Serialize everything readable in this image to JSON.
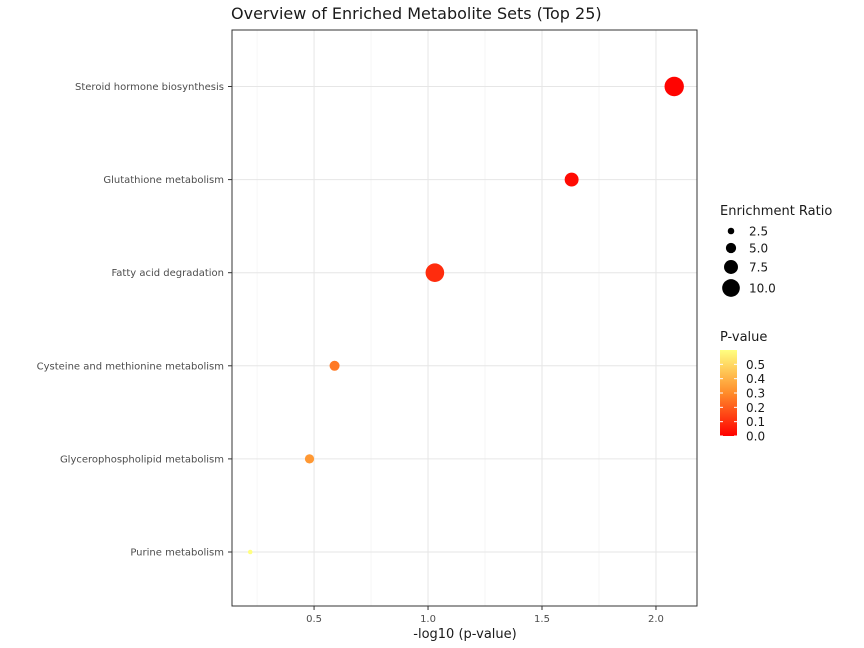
{
  "chart_data": {
    "type": "scatter",
    "title": "Overview of Enriched Metabolite Sets (Top 25)",
    "xlabel": "-log10 (p-value)",
    "ylabel": "",
    "xlim": [
      0.14,
      2.18
    ],
    "xticks": [
      0.5,
      1.0,
      1.5,
      2.0
    ],
    "xtick_labels": [
      "0.5",
      "1.0",
      "1.5",
      "2.0"
    ],
    "grid": true,
    "categories": [
      "Steroid hormone biosynthesis",
      "Glutathione metabolism",
      "Fatty acid degradation",
      "Cysteine and methionine metabolism",
      "Glycerophospholipid metabolism",
      "Purine metabolism"
    ],
    "points": [
      {
        "category": "Steroid hormone biosynthesis",
        "x": 2.08,
        "p_value": 0.008,
        "enrichment_ratio": 10.5
      },
      {
        "category": "Glutathione metabolism",
        "x": 1.63,
        "p_value": 0.023,
        "enrichment_ratio": 7.0
      },
      {
        "category": "Fatty acid degradation",
        "x": 1.03,
        "p_value": 0.094,
        "enrichment_ratio": 10.0
      },
      {
        "category": "Cysteine and methionine metabolism",
        "x": 0.59,
        "p_value": 0.26,
        "enrichment_ratio": 4.5
      },
      {
        "category": "Glycerophospholipid metabolism",
        "x": 0.48,
        "p_value": 0.33,
        "enrichment_ratio": 4.0
      },
      {
        "category": "Purine metabolism",
        "x": 0.22,
        "p_value": 0.6,
        "enrichment_ratio": 1.0
      }
    ],
    "size_legend": {
      "title": "Enrichment Ratio",
      "values": [
        2.5,
        5.0,
        7.5,
        10.0
      ],
      "labels": [
        "2.5",
        "5.0",
        "7.5",
        "10.0"
      ]
    },
    "color_legend": {
      "title": "P-value",
      "labels": [
        "0.5",
        "0.4",
        "0.3",
        "0.2",
        "0.1",
        "0.0"
      ],
      "values": [
        0.5,
        0.4,
        0.3,
        0.2,
        0.1,
        0.0
      ],
      "range": [
        0.0,
        0.6
      ],
      "colors": [
        "#ff0000",
        "#ff8c2a",
        "#ffff80"
      ]
    },
    "legend_position": "right"
  }
}
